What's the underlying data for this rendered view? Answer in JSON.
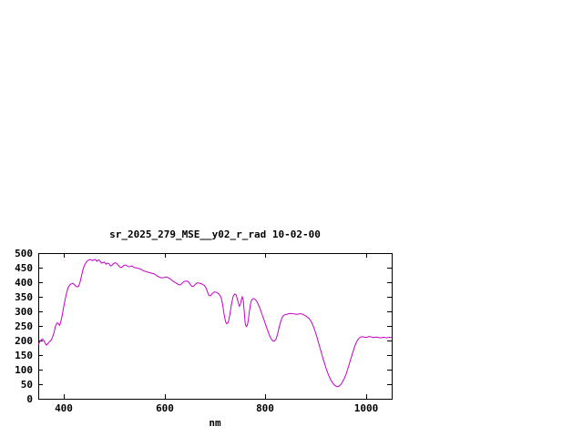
{
  "chart_data": {
    "type": "line",
    "title": "sr_2025_279_MSE__y02_r_rad 10-02-00",
    "xlabel": "nm",
    "ylabel": "",
    "xlim": [
      350,
      1050
    ],
    "ylim": [
      0,
      500
    ],
    "x_ticks": [
      400,
      600,
      800,
      1000
    ],
    "y_ticks": [
      0,
      50,
      100,
      150,
      200,
      250,
      300,
      350,
      400,
      450,
      500
    ],
    "grid": false,
    "legend": "none",
    "background": "#ffffff",
    "axis_color": "#000000",
    "line_color": "#c400c4",
    "series": [
      {
        "points": [
          [
            350,
            185
          ],
          [
            353,
            196
          ],
          [
            356,
            202
          ],
          [
            358,
            205
          ],
          [
            360,
            203
          ],
          [
            363,
            193
          ],
          [
            366,
            184
          ],
          [
            369,
            189
          ],
          [
            372,
            196
          ],
          [
            375,
            200
          ],
          [
            378,
            210
          ],
          [
            381,
            226
          ],
          [
            384,
            248
          ],
          [
            387,
            260
          ],
          [
            390,
            258
          ],
          [
            392,
            252
          ],
          [
            394,
            260
          ],
          [
            397,
            283
          ],
          [
            400,
            312
          ],
          [
            403,
            339
          ],
          [
            406,
            362
          ],
          [
            409,
            381
          ],
          [
            412,
            390
          ],
          [
            415,
            394
          ],
          [
            418,
            396
          ],
          [
            421,
            393
          ],
          [
            424,
            387
          ],
          [
            427,
            384
          ],
          [
            430,
            386
          ],
          [
            433,
            402
          ],
          [
            436,
            425
          ],
          [
            439,
            446
          ],
          [
            442,
            460
          ],
          [
            445,
            469
          ],
          [
            448,
            474
          ],
          [
            451,
            477
          ],
          [
            454,
            478
          ],
          [
            457,
            474
          ],
          [
            460,
            477
          ],
          [
            463,
            478
          ],
          [
            466,
            472
          ],
          [
            469,
            477
          ],
          [
            472,
            474
          ],
          [
            475,
            466
          ],
          [
            478,
            467
          ],
          [
            481,
            469
          ],
          [
            484,
            462
          ],
          [
            487,
            466
          ],
          [
            490,
            464
          ],
          [
            493,
            456
          ],
          [
            496,
            458
          ],
          [
            499,
            464
          ],
          [
            502,
            467
          ],
          [
            505,
            465
          ],
          [
            508,
            459
          ],
          [
            511,
            453
          ],
          [
            514,
            450
          ],
          [
            517,
            454
          ],
          [
            520,
            458
          ],
          [
            523,
            459
          ],
          [
            526,
            456
          ],
          [
            529,
            453
          ],
          [
            532,
            454
          ],
          [
            535,
            456
          ],
          [
            538,
            453
          ],
          [
            541,
            450
          ],
          [
            544,
            449
          ],
          [
            547,
            448
          ],
          [
            550,
            446
          ],
          [
            553,
            445
          ],
          [
            556,
            442
          ],
          [
            559,
            439
          ],
          [
            562,
            437
          ],
          [
            565,
            436
          ],
          [
            568,
            434
          ],
          [
            571,
            433
          ],
          [
            574,
            431
          ],
          [
            577,
            430
          ],
          [
            580,
            428
          ],
          [
            583,
            425
          ],
          [
            586,
            421
          ],
          [
            589,
            418
          ],
          [
            592,
            416
          ],
          [
            595,
            415
          ],
          [
            598,
            416
          ],
          [
            601,
            417
          ],
          [
            604,
            418
          ],
          [
            607,
            416
          ],
          [
            610,
            413
          ],
          [
            613,
            409
          ],
          [
            616,
            405
          ],
          [
            619,
            401
          ],
          [
            622,
            398
          ],
          [
            625,
            395
          ],
          [
            628,
            392
          ],
          [
            631,
            391
          ],
          [
            634,
            395
          ],
          [
            637,
            400
          ],
          [
            640,
            403
          ],
          [
            643,
            404
          ],
          [
            646,
            403
          ],
          [
            649,
            398
          ],
          [
            652,
            390
          ],
          [
            655,
            385
          ],
          [
            658,
            387
          ],
          [
            661,
            393
          ],
          [
            664,
            397
          ],
          [
            667,
            398
          ],
          [
            670,
            396
          ],
          [
            673,
            395
          ],
          [
            676,
            392
          ],
          [
            679,
            389
          ],
          [
            682,
            382
          ],
          [
            685,
            367
          ],
          [
            688,
            355
          ],
          [
            691,
            353
          ],
          [
            694,
            360
          ],
          [
            697,
            365
          ],
          [
            700,
            367
          ],
          [
            703,
            365
          ],
          [
            706,
            362
          ],
          [
            709,
            357
          ],
          [
            712,
            348
          ],
          [
            715,
            325
          ],
          [
            718,
            290
          ],
          [
            721,
            265
          ],
          [
            723,
            258
          ],
          [
            725,
            259
          ],
          [
            727,
            267
          ],
          [
            730,
            295
          ],
          [
            733,
            328
          ],
          [
            736,
            352
          ],
          [
            739,
            360
          ],
          [
            742,
            356
          ],
          [
            745,
            338
          ],
          [
            748,
            318
          ],
          [
            750,
            322
          ],
          [
            752,
            338
          ],
          [
            754,
            350
          ],
          [
            756,
            340
          ],
          [
            758,
            300
          ],
          [
            760,
            255
          ],
          [
            762,
            248
          ],
          [
            764,
            252
          ],
          [
            766,
            270
          ],
          [
            768,
            298
          ],
          [
            770,
            322
          ],
          [
            772,
            336
          ],
          [
            774,
            342
          ],
          [
            776,
            344
          ],
          [
            779,
            342
          ],
          [
            782,
            336
          ],
          [
            785,
            327
          ],
          [
            788,
            315
          ],
          [
            791,
            301
          ],
          [
            794,
            286
          ],
          [
            797,
            271
          ],
          [
            800,
            256
          ],
          [
            803,
            241
          ],
          [
            806,
            226
          ],
          [
            809,
            213
          ],
          [
            812,
            203
          ],
          [
            815,
            198
          ],
          [
            818,
            198
          ],
          [
            821,
            205
          ],
          [
            824,
            222
          ],
          [
            827,
            245
          ],
          [
            830,
            265
          ],
          [
            833,
            279
          ],
          [
            836,
            286
          ],
          [
            839,
            289
          ],
          [
            842,
            290
          ],
          [
            846,
            292
          ],
          [
            850,
            293
          ],
          [
            854,
            292
          ],
          [
            858,
            291
          ],
          [
            862,
            290
          ],
          [
            866,
            291
          ],
          [
            870,
            292
          ],
          [
            874,
            290
          ],
          [
            878,
            286
          ],
          [
            882,
            282
          ],
          [
            886,
            276
          ],
          [
            890,
            267
          ],
          [
            893,
            256
          ],
          [
            896,
            243
          ],
          [
            899,
            228
          ],
          [
            902,
            211
          ],
          [
            905,
            193
          ],
          [
            908,
            174
          ],
          [
            911,
            156
          ],
          [
            914,
            138
          ],
          [
            917,
            121
          ],
          [
            920,
            105
          ],
          [
            923,
            90
          ],
          [
            926,
            77
          ],
          [
            929,
            66
          ],
          [
            932,
            57
          ],
          [
            935,
            50
          ],
          [
            938,
            45
          ],
          [
            941,
            42
          ],
          [
            944,
            42
          ],
          [
            947,
            45
          ],
          [
            950,
            51
          ],
          [
            953,
            59
          ],
          [
            956,
            69
          ],
          [
            959,
            82
          ],
          [
            962,
            97
          ],
          [
            965,
            114
          ],
          [
            968,
            131
          ],
          [
            971,
            148
          ],
          [
            974,
            165
          ],
          [
            977,
            181
          ],
          [
            980,
            194
          ],
          [
            983,
            203
          ],
          [
            986,
            209
          ],
          [
            989,
            212
          ],
          [
            992,
            213
          ],
          [
            995,
            212
          ],
          [
            998,
            211
          ],
          [
            1001,
            211
          ],
          [
            1004,
            213
          ],
          [
            1007,
            213
          ],
          [
            1010,
            212
          ],
          [
            1013,
            210
          ],
          [
            1016,
            211
          ],
          [
            1019,
            212
          ],
          [
            1022,
            211
          ],
          [
            1025,
            210
          ],
          [
            1028,
            209
          ],
          [
            1031,
            210
          ],
          [
            1034,
            211
          ],
          [
            1037,
            210
          ],
          [
            1040,
            209
          ],
          [
            1043,
            210
          ],
          [
            1046,
            211
          ],
          [
            1050,
            210
          ]
        ]
      }
    ]
  }
}
